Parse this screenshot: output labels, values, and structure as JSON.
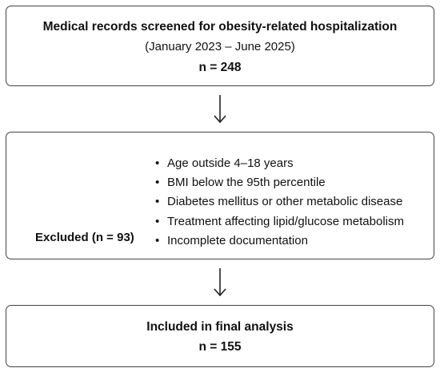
{
  "screened": {
    "title": "Medical records screened for obesity-related hospitalization",
    "dates": "(January 2023 – June 2025)",
    "count": "n = 248"
  },
  "excluded": {
    "label": "Excluded (n = 93)",
    "criteria": [
      "Age outside 4–18 years",
      "BMI below the 95th percentile",
      "Diabetes mellitus or other metabolic disease",
      "Treatment affecting lipid/glucose metabolism",
      "Incomplete documentation"
    ]
  },
  "included": {
    "title": "Included in final analysis",
    "count": "n = 155"
  },
  "colors": {
    "border": "#444444",
    "text": "#111111",
    "arrow": "#222222"
  },
  "icons": {
    "arrow": "down-arrow-icon",
    "bullet": "bullet-icon"
  }
}
